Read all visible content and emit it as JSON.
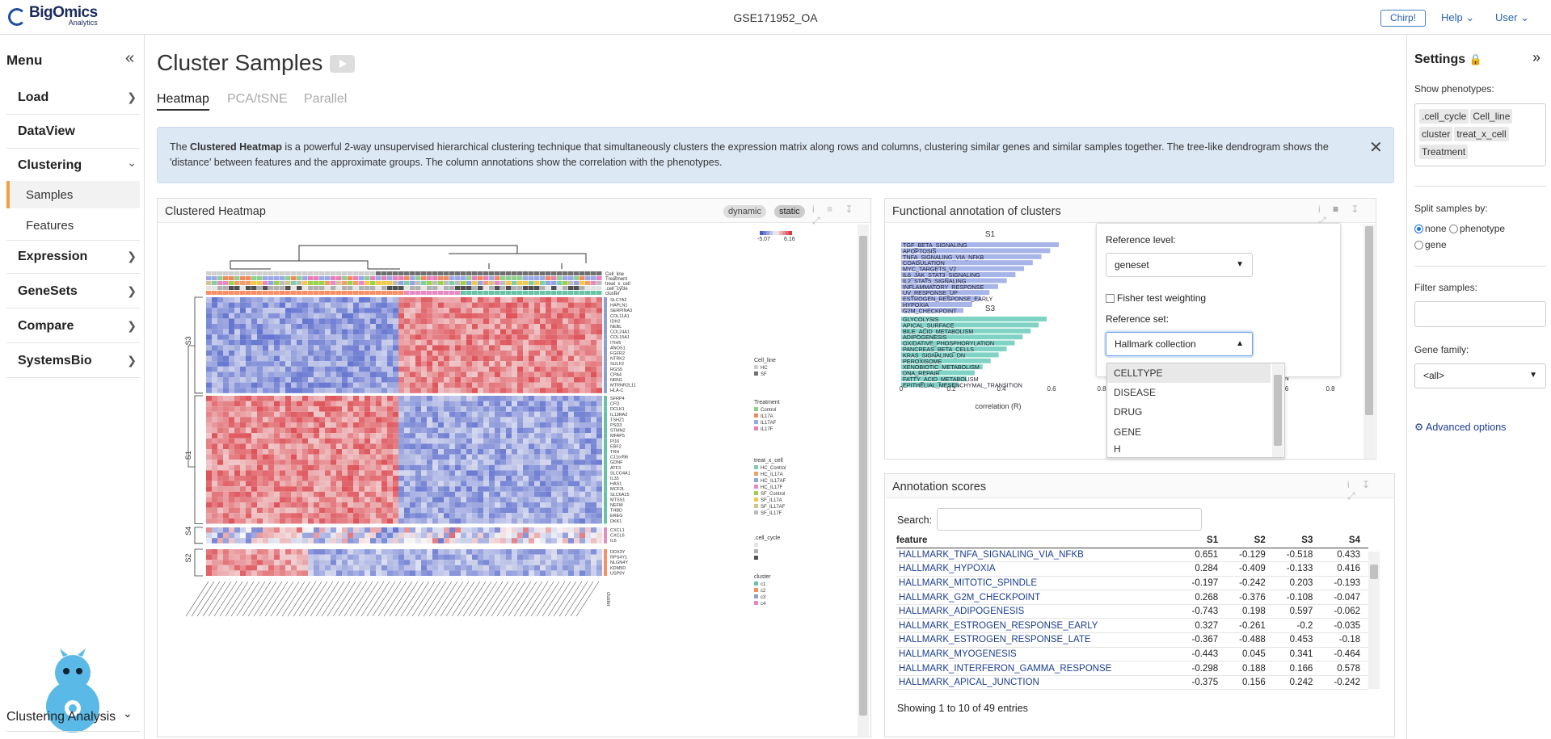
{
  "brand": {
    "name": "BigOmics",
    "tagline": "Analytics"
  },
  "header": {
    "dataset": "GSE171952_OA",
    "chirp": "Chirp!",
    "help": "Help",
    "user": "User"
  },
  "sidebar": {
    "title": "Menu",
    "items": [
      {
        "label": "Load"
      },
      {
        "label": "DataView"
      },
      {
        "label": "Clustering"
      },
      {
        "label": "Samples"
      },
      {
        "label": "Features"
      },
      {
        "label": "Expression"
      },
      {
        "label": "GeneSets"
      },
      {
        "label": "Compare"
      },
      {
        "label": "SystemsBio"
      }
    ],
    "footer_label": "Clustering Analysis"
  },
  "main": {
    "title": "Cluster Samples",
    "tabs": [
      {
        "label": "Heatmap"
      },
      {
        "label": "PCA/tSNE"
      },
      {
        "label": "Parallel"
      }
    ],
    "info": {
      "pre": "The ",
      "bold": "Clustered Heatmap",
      "post": " is a powerful 2-way unsupervised hierarchical clustering technique that simultaneously clusters the expression matrix along rows and columns, clustering similar genes and similar samples together. The tree-like dendrogram shows the 'distance' between features and the approximate groups. The column annotations show the correlation with the phenotypes."
    }
  },
  "heatmap_card": {
    "title": "Clustered Heatmap",
    "pill_dynamic": "dynamic",
    "pill_static": "static",
    "scale_min": "-5.07",
    "scale_max": "6.16",
    "annot_rows": [
      "Cell_line",
      "Treatment",
      "treat_x_cell",
      ".cell_cycle",
      "cluster"
    ],
    "row_clusters": [
      "S3",
      "S1",
      "S4",
      "S2"
    ],
    "genes": {
      "S3": [
        "SLC7A2",
        "HAPLN1",
        "SERPINA3",
        "COL11A1",
        "IDH2",
        "NEBL",
        "COL24A1",
        "COL15A1",
        "ITIH5",
        "ANOS1",
        "FGFR2",
        "NTRK2",
        "SULF2",
        "RGS5",
        "CPA4",
        "NRN1",
        "MTRNR2L11",
        "HLA-C"
      ],
      "S1": [
        "SFRP4",
        "CFD",
        "DCLK1",
        "IL13RA2",
        "TSHZ1",
        "PSD3",
        "STMN2",
        "MFAP5",
        "PI16",
        "EBF2",
        "TRH",
        "C11orf96",
        "GDNF",
        "ATF3",
        "SLCO4A1",
        "IL33",
        "HAS1",
        "MCF2L",
        "SLC6A15",
        "MTSS1",
        "NEFM",
        "THBD",
        "EREG",
        "DKK1"
      ],
      "S4": [
        "CXCL1",
        "CXCL6",
        "IL6"
      ],
      "S2": [
        "DDX3Y",
        "RPS4Y1",
        "NLGN4Y",
        "KDM5D",
        "USP9Y"
      ]
    },
    "legend": {
      "Cell_line": [
        "HC",
        "SF"
      ],
      "Treatment": [
        "Control",
        "IL17A",
        "IL17AF",
        "IL17F"
      ],
      "treat_x_cell": [
        "HC_Control",
        "HC_IL17A",
        "HC_IL17AF",
        "HC_IL17F",
        "SF_Control",
        "SF_IL17A",
        "SF_IL17AF",
        "SF_IL17F"
      ],
      ".cell_cycle": [
        "G1",
        "G2M",
        "S"
      ],
      "cluster": [
        "c1",
        "c2",
        "c3",
        "c4"
      ]
    },
    "legend_titles": [
      "Cell_line",
      "Treatment",
      "treat_x_cell",
      ".cell_cycle",
      "cluster"
    ],
    "bottom_label": "cluster",
    "colors": {
      "low": "#4b5ec9",
      "mid": "#f7f7f7",
      "high": "#d9363e"
    }
  },
  "func_card": {
    "title": "Functional annotation of clusters",
    "panels": [
      {
        "name": "S1",
        "terms": [
          "TGF_BETA_SIGNALING",
          "APOPTOSIS",
          "TNFA_SIGNALING_VIA_NFKB",
          "COAGULATION",
          "MYC_TARGETS_V2",
          "IL6_JAK_STAT3_SIGNALING",
          "IL2_STAT5_SIGNALING",
          "INFLAMMATORY_RESPONSE",
          "UV_RESPONSE_UP",
          "ESTROGEN_RESPONSE_EARLY",
          "HYPOXIA",
          "G2M_CHECKPOINT"
        ]
      },
      {
        "name": "S3",
        "terms": [
          "GLYCOLYSIS",
          "APICAL_SURFACE",
          "BILE_ACID_METABOLISM",
          "ADIPOGENESIS",
          "OXIDATIVE_PHOSPHORYLATION",
          "PANCREAS_BETA_CELLS",
          "KRAS_SIGNALING_DN",
          "PEROXISOME",
          "XENOBIOTIC_METABOLISM",
          "DNA_REPAIR",
          "FATTY_ACID_METABOLISM",
          "EPITHELIAL_MESENCHYMAL_TRANSITION"
        ]
      }
    ],
    "xticks": [
      "0",
      "0.2",
      "0.4",
      "0.6",
      "0.8"
    ],
    "xlabel": "correlation (R)",
    "right_ticks": [
      ".6",
      "0.8"
    ],
    "right_letter": "N",
    "colors": {
      "S1": "#a7b4e8",
      "S3": "#7ed3c4"
    },
    "popup": {
      "ref_level_label": "Reference level:",
      "ref_level_value": "geneset",
      "fisher_label": "Fisher test weighting",
      "ref_set_label": "Reference set:",
      "ref_set_value": "Hallmark collection",
      "options": [
        "CELLTYPE",
        "DISEASE",
        "DRUG",
        "GENE",
        "H"
      ]
    }
  },
  "scores_card": {
    "title": "Annotation scores",
    "search_label": "Search:",
    "columns": [
      "feature",
      "S1",
      "S2",
      "S3",
      "S4"
    ],
    "rows": [
      [
        "HALLMARK_TNFA_SIGNALING_VIA_NFKB",
        "0.651",
        "-0.129",
        "-0.518",
        "0.433"
      ],
      [
        "HALLMARK_HYPOXIA",
        "0.284",
        "-0.409",
        "-0.133",
        "0.416"
      ],
      [
        "HALLMARK_MITOTIC_SPINDLE",
        "-0.197",
        "-0.242",
        "0.203",
        "-0.193"
      ],
      [
        "HALLMARK_G2M_CHECKPOINT",
        "0.268",
        "-0.376",
        "-0.108",
        "-0.047"
      ],
      [
        "HALLMARK_ADIPOGENESIS",
        "-0.743",
        "0.198",
        "0.597",
        "-0.062"
      ],
      [
        "HALLMARK_ESTROGEN_RESPONSE_EARLY",
        "0.327",
        "-0.261",
        "-0.2",
        "-0.035"
      ],
      [
        "HALLMARK_ESTROGEN_RESPONSE_LATE",
        "-0.367",
        "-0.488",
        "0.453",
        "-0.18"
      ],
      [
        "HALLMARK_MYOGENESIS",
        "-0.443",
        "0.045",
        "0.341",
        "-0.464"
      ],
      [
        "HALLMARK_INTERFERON_GAMMA_RESPONSE",
        "-0.298",
        "0.188",
        "0.166",
        "0.578"
      ],
      [
        "HALLMARK_APICAL_JUNCTION",
        "-0.375",
        "0.156",
        "0.242",
        "-0.242"
      ]
    ],
    "footer": "Showing 1 to 10 of 49 entries"
  },
  "settings": {
    "title": "Settings",
    "show_pheno_label": "Show phenotypes:",
    "phenotypes": [
      ".cell_cycle",
      "Cell_line",
      "cluster",
      "treat_x_cell",
      "Treatment"
    ],
    "split_label": "Split samples by:",
    "split_options": [
      "none",
      "phenotype",
      "gene"
    ],
    "filter_label": "Filter samples:",
    "gene_family_label": "Gene family:",
    "gene_family_value": "<all>",
    "advanced": "Advanced options"
  }
}
